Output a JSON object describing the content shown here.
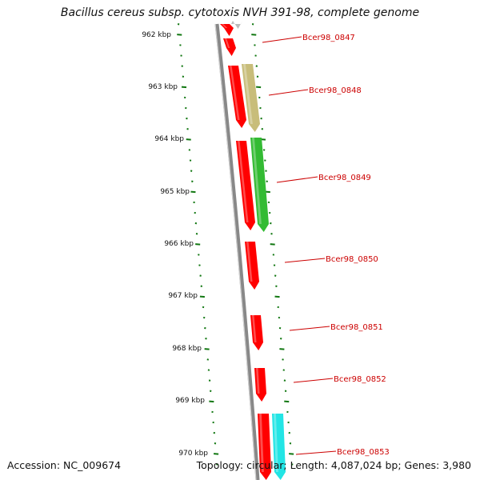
{
  "title": "Bacillus cereus subsp. cytotoxis NVH 391-98, complete genome",
  "footer": {
    "accession": "Accession: NC_009674",
    "summary": "Topology: circular; Length: 4,087,024 bp; Genes: 3,980"
  },
  "colors": {
    "backbone": "#888888",
    "tick": "#117711",
    "gene_label": "#cc0000",
    "red_gene": "#ff0000",
    "olive_gene": "#c8bd7a",
    "green_gene": "#33bb33",
    "cyan_gene": "#22e5e5",
    "gray_gene": "#bbbbbb"
  },
  "scale_ticks": [
    "962 kbp",
    "963 kbp",
    "964 kbp",
    "965 kbp",
    "966 kbp",
    "967 kbp",
    "968 kbp",
    "969 kbp",
    "970 kbp"
  ],
  "gene_labels": [
    "Bcer98_0847",
    "Bcer98_0848",
    "Bcer98_0849",
    "Bcer98_0850",
    "Bcer98_0851",
    "Bcer98_0852",
    "Bcer98_0853"
  ]
}
